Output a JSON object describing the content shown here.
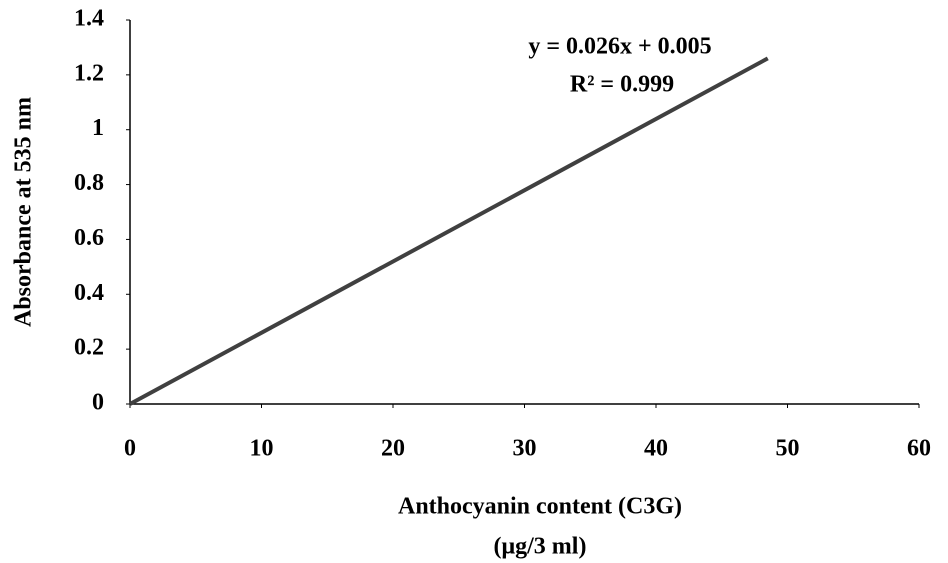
{
  "chart_data": {
    "type": "line",
    "xlabel": "Anthocyanin content (C3G)",
    "xlabel_unit": "(μg/3 ml)",
    "ylabel": "Absorbance at 535 nm",
    "annotations": [
      "y = 0.026x + 0.005",
      "R² = 0.999"
    ],
    "x": [
      0,
      48.5
    ],
    "series": [
      {
        "color": "#404040",
        "values": [
          0,
          1.26
        ]
      }
    ],
    "xlim": [
      0,
      60
    ],
    "xticks": [
      0,
      10,
      20,
      30,
      40,
      50,
      60
    ],
    "ylim": [
      0,
      1.4
    ],
    "yticks": [
      0,
      0.2,
      0.4,
      0.6,
      0.8,
      1,
      1.2,
      1.4
    ],
    "grid": false
  }
}
